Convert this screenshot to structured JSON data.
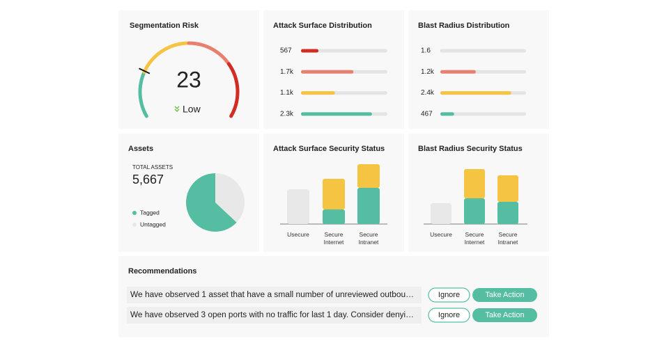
{
  "chart_data": [
    {
      "type": "gauge",
      "title": "Segmentation Risk",
      "value": 23,
      "label": "Low",
      "range": [
        0,
        100
      ]
    },
    {
      "type": "hbar",
      "title": "Attack Surface Distribution",
      "values": [
        567,
        1700,
        1100,
        2300
      ],
      "value_labels": [
        "567",
        "1.7k",
        "1.1k",
        "2.3k"
      ],
      "colors": [
        "#d22d24",
        "#e9806f",
        "#f6c443",
        "#55bea2"
      ],
      "xlim": [
        0,
        2800
      ]
    },
    {
      "type": "hbar",
      "title": "Blast Radius Distribution",
      "values": [
        1.6,
        1200,
        2400,
        467
      ],
      "value_labels": [
        "1.6",
        "1.2k",
        "2.4k",
        "467"
      ],
      "colors": [
        "#d22d24",
        "#e9806f",
        "#f6c443",
        "#55bea2"
      ],
      "xlim": [
        0,
        2900
      ]
    },
    {
      "type": "pie",
      "title": "Assets",
      "subtitle": "TOTAL ASSETS",
      "total": 5667,
      "total_label": "5,667",
      "categories": [
        "Tagged",
        "Untagged"
      ],
      "values": [
        63,
        37
      ],
      "colors": [
        "#55bea2",
        "#e8e8e8"
      ]
    },
    {
      "type": "stacked-bar",
      "title": "Attack Surface Security Status",
      "categories": [
        "Usecure",
        "Secure Internet",
        "Secure Intranet"
      ],
      "series": [
        {
          "color": "#e8e8e8",
          "values": [
            50,
            0,
            0
          ]
        },
        {
          "color": "#55bea2",
          "values": [
            0,
            21,
            52
          ]
        },
        {
          "color": "#f6c443",
          "values": [
            0,
            44,
            34
          ]
        }
      ],
      "ylim": [
        0,
        100
      ]
    },
    {
      "type": "stacked-bar",
      "title": "Blast Radius Security Status",
      "categories": [
        "Usecure",
        "Secure Internet",
        "Secure Intranet"
      ],
      "series": [
        {
          "color": "#e8e8e8",
          "values": [
            30,
            0,
            0
          ]
        },
        {
          "color": "#55bea2",
          "values": [
            0,
            37,
            32
          ]
        },
        {
          "color": "#f6c443",
          "values": [
            0,
            42,
            38
          ]
        }
      ],
      "ylim": [
        0,
        100
      ]
    }
  ],
  "recommendations": {
    "title": "Recommendations",
    "items": [
      {
        "text": "We have observed 1 asset that have a small number of unreviewed outbou…",
        "ignore": "Ignore",
        "action": "Take Action"
      },
      {
        "text": "We have observed 3 open ports with no traffic for last 1 day. Consider denyi…",
        "ignore": "Ignore",
        "action": "Take Action"
      }
    ]
  }
}
